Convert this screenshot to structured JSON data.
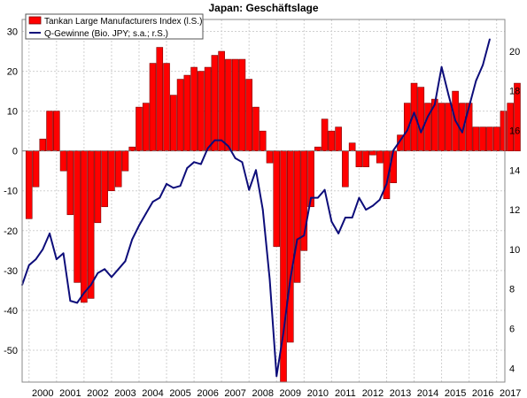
{
  "chart_data": {
    "type": "bar",
    "title": "Japan: Geschäftslage",
    "grid": true,
    "legend_position": "top-left",
    "colors": {
      "bars": "#ff0000",
      "bar_edge": "#7a0000",
      "line": "#0d0d7a",
      "zero_line": "#777777"
    },
    "x_ticks": [
      "2000",
      "2001",
      "2002",
      "2003",
      "2004",
      "2005",
      "2006",
      "2007",
      "2008",
      "2009",
      "2010",
      "2011",
      "2012",
      "2013",
      "2014",
      "2015",
      "2016",
      "2017"
    ],
    "y_left": {
      "ylim": [
        -58,
        33
      ],
      "ticks": [
        30,
        20,
        10,
        0,
        -10,
        -20,
        -30,
        -40,
        -50
      ]
    },
    "y_right": {
      "ylim": [
        3.3,
        21.6
      ],
      "ticks": [
        20,
        18,
        16,
        14,
        12,
        10,
        8,
        6,
        4
      ]
    },
    "x_range": [
      1999.75,
      2017.3
    ],
    "series": [
      {
        "name": "Tankan Large Manufacturers Index (l.S.)",
        "type": "bar",
        "axis": "left",
        "start": 2000.0,
        "step": 0.25,
        "values": [
          -17,
          -9,
          3,
          10,
          10,
          -5,
          -16,
          -33,
          -38,
          -37,
          -18,
          -14,
          -10,
          -9,
          -5,
          1,
          11,
          12,
          22,
          26,
          22,
          14,
          18,
          19,
          21,
          20,
          21,
          24,
          25,
          23,
          23,
          23,
          18,
          11,
          5,
          -3,
          -24,
          -58,
          -48,
          -33,
          -25,
          -14,
          1,
          8,
          5,
          6,
          -9,
          2,
          -4,
          -4,
          -1,
          -3,
          -12,
          -8,
          4,
          12,
          17,
          16,
          12,
          13,
          12,
          12,
          15,
          12,
          12,
          6,
          6,
          6,
          6,
          10,
          12,
          17
        ]
      },
      {
        "name": "Q-Gewinne (Bio. JPY; s.a.; r.S.)",
        "type": "line",
        "axis": "right",
        "points": [
          [
            1999.75,
            8.2
          ],
          [
            2000.0,
            9.2
          ],
          [
            2000.25,
            9.5
          ],
          [
            2000.5,
            10.0
          ],
          [
            2000.75,
            10.8
          ],
          [
            2001.0,
            9.5
          ],
          [
            2001.25,
            9.8
          ],
          [
            2001.5,
            7.4
          ],
          [
            2001.75,
            7.3
          ],
          [
            2002.0,
            7.8
          ],
          [
            2002.25,
            8.2
          ],
          [
            2002.5,
            8.8
          ],
          [
            2002.75,
            9.0
          ],
          [
            2003.0,
            8.6
          ],
          [
            2003.25,
            9.0
          ],
          [
            2003.5,
            9.4
          ],
          [
            2003.75,
            10.5
          ],
          [
            2004.0,
            11.2
          ],
          [
            2004.25,
            11.8
          ],
          [
            2004.5,
            12.4
          ],
          [
            2004.75,
            12.6
          ],
          [
            2005.0,
            13.3
          ],
          [
            2005.25,
            13.1
          ],
          [
            2005.5,
            13.2
          ],
          [
            2005.75,
            14.1
          ],
          [
            2006.0,
            14.4
          ],
          [
            2006.25,
            14.3
          ],
          [
            2006.5,
            15.1
          ],
          [
            2006.75,
            15.5
          ],
          [
            2007.0,
            15.5
          ],
          [
            2007.25,
            15.2
          ],
          [
            2007.5,
            14.6
          ],
          [
            2007.75,
            14.4
          ],
          [
            2008.0,
            13.0
          ],
          [
            2008.25,
            14.0
          ],
          [
            2008.5,
            12.0
          ],
          [
            2008.75,
            8.5
          ],
          [
            2009.0,
            3.6
          ],
          [
            2009.25,
            5.8
          ],
          [
            2009.5,
            8.5
          ],
          [
            2009.75,
            10.5
          ],
          [
            2010.0,
            10.7
          ],
          [
            2010.25,
            12.6
          ],
          [
            2010.5,
            12.6
          ],
          [
            2010.75,
            13.0
          ],
          [
            2011.0,
            11.4
          ],
          [
            2011.25,
            10.8
          ],
          [
            2011.5,
            11.6
          ],
          [
            2011.75,
            11.6
          ],
          [
            2012.0,
            12.6
          ],
          [
            2012.25,
            12.0
          ],
          [
            2012.5,
            12.2
          ],
          [
            2012.75,
            12.5
          ],
          [
            2013.0,
            13.3
          ],
          [
            2013.25,
            15.0
          ],
          [
            2013.5,
            15.5
          ],
          [
            2013.75,
            16.0
          ],
          [
            2014.0,
            16.9
          ],
          [
            2014.25,
            15.9
          ],
          [
            2014.5,
            16.7
          ],
          [
            2014.75,
            17.3
          ],
          [
            2015.0,
            19.2
          ],
          [
            2015.25,
            17.8
          ],
          [
            2015.5,
            16.5
          ],
          [
            2015.75,
            15.9
          ],
          [
            2016.0,
            17.2
          ],
          [
            2016.25,
            18.5
          ],
          [
            2016.5,
            19.3
          ],
          [
            2016.75,
            20.6
          ]
        ]
      }
    ]
  }
}
